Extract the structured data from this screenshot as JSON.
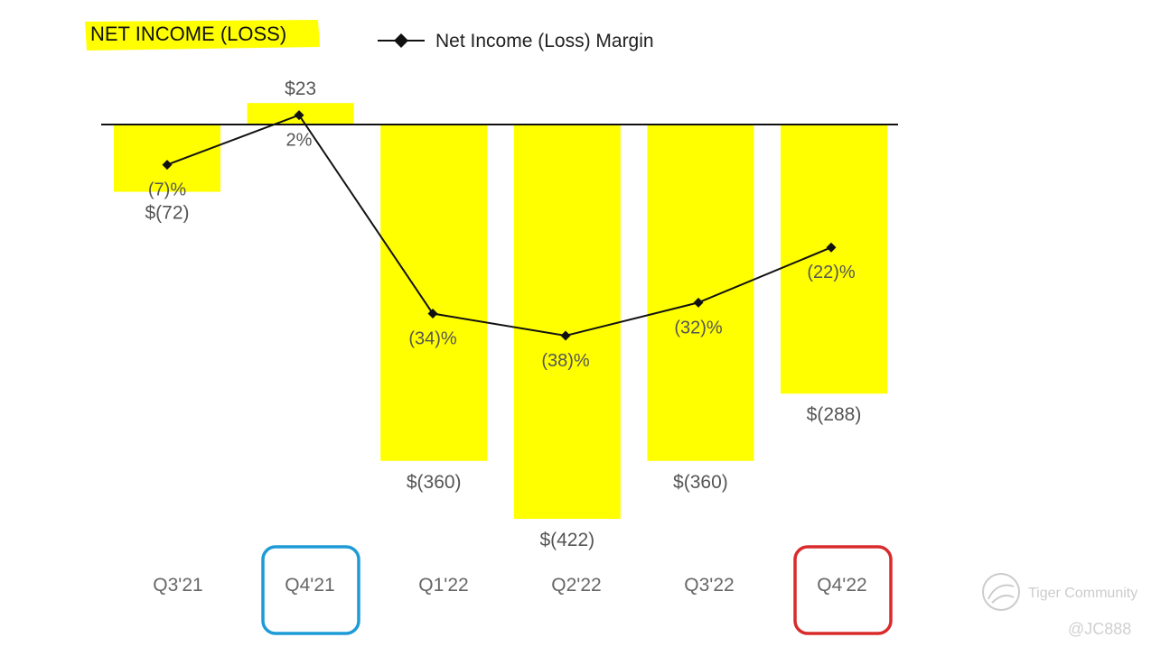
{
  "chart_data": {
    "type": "bar",
    "title": "NET INCOME (LOSS)",
    "categories": [
      "Q3'21",
      "Q4'21",
      "Q1'22",
      "Q2'22",
      "Q3'22",
      "Q4'22"
    ],
    "series": [
      {
        "name": "",
        "type": "bar",
        "values": [
          -72,
          23,
          -360,
          -422,
          -360,
          -288
        ],
        "labels": [
          "$(72)",
          "$23",
          "$(360)",
          "$(422)",
          "$(360)",
          "$(288)"
        ],
        "color": "#FFFF00"
      },
      {
        "name": "Net Income (Loss) Margin",
        "type": "line",
        "values": [
          -7,
          2,
          -34,
          -38,
          -32,
          -22
        ],
        "labels": [
          "(7)%",
          "2%",
          "(34)%",
          "(38)%",
          "(32)%",
          "(22)%"
        ],
        "color": "#111111"
      }
    ],
    "highlighted_categories": [
      {
        "category": "Q4'21",
        "color": "#1E9BD7"
      },
      {
        "category": "Q4'22",
        "color": "#D92B2B"
      }
    ],
    "legend": "top",
    "grid": false
  },
  "watermark": {
    "brand": "Tiger Community",
    "handle": "@JC888",
    "icon": "tiger-community-logo-icon"
  }
}
